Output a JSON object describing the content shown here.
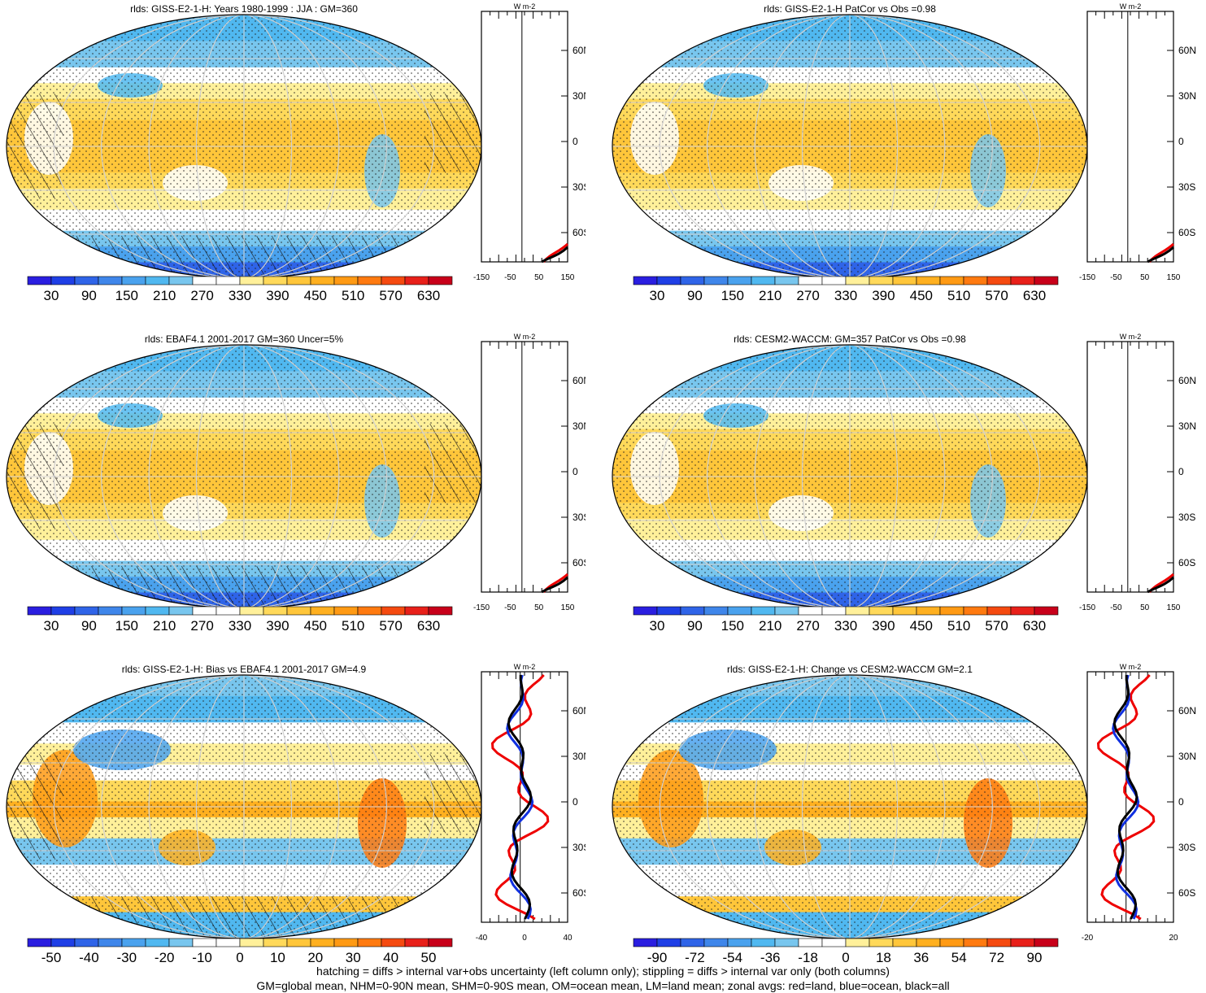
{
  "panels": [
    {
      "id": "p1",
      "title": "rlds: GISS-E2-1-H: Years 1980-1999 : JJA : GM=360",
      "type": "abs",
      "colorbar": [
        "30",
        "90",
        "150",
        "210",
        "270",
        "330",
        "390",
        "450",
        "510",
        "570",
        "630"
      ],
      "zonal_ticks": [
        "-150",
        "-50",
        "50",
        "150"
      ],
      "zonal_units": "W m-2",
      "hatch": true
    },
    {
      "id": "p2",
      "title": "rlds: GISS-E2-1-H PatCor vs Obs =0.98",
      "type": "abs",
      "colorbar": [
        "30",
        "90",
        "150",
        "210",
        "270",
        "330",
        "390",
        "450",
        "510",
        "570",
        "630"
      ],
      "zonal_ticks": [
        "-150",
        "-50",
        "50",
        "150"
      ],
      "zonal_units": "W m-2",
      "hatch": false
    },
    {
      "id": "p3",
      "title": "rlds: EBAF4.1 2001-2017 GM=360 Uncer=5%",
      "type": "abs",
      "colorbar": [
        "30",
        "90",
        "150",
        "210",
        "270",
        "330",
        "390",
        "450",
        "510",
        "570",
        "630"
      ],
      "zonal_ticks": [
        "-150",
        "-50",
        "50",
        "150"
      ],
      "zonal_units": "W m-2",
      "hatch": true
    },
    {
      "id": "p4",
      "title": "rlds: CESM2-WACCM: GM=357 PatCor vs Obs =0.98",
      "type": "abs",
      "colorbar": [
        "30",
        "90",
        "150",
        "210",
        "270",
        "330",
        "390",
        "450",
        "510",
        "570",
        "630"
      ],
      "zonal_ticks": [
        "-150",
        "-50",
        "50",
        "150"
      ],
      "zonal_units": "W m-2",
      "hatch": false
    },
    {
      "id": "p5",
      "title": "rlds: GISS-E2-1-H: Bias vs EBAF4.1 2001-2017 GM=4.9",
      "type": "diff",
      "colorbar": [
        "-50",
        "-40",
        "-30",
        "-20",
        "-10",
        "0",
        "10",
        "20",
        "30",
        "40",
        "50"
      ],
      "zonal_ticks": [
        "-40",
        "0",
        "40"
      ],
      "zonal_units": "W m-2",
      "hatch": true
    },
    {
      "id": "p6",
      "title": "rlds: GISS-E2-1-H: Change vs CESM2-WACCM GM=2.1",
      "type": "diff",
      "colorbar": [
        "-90",
        "-72",
        "-54",
        "-36",
        "-18",
        "0",
        "18",
        "36",
        "54",
        "72",
        "90"
      ],
      "zonal_ticks": [
        "-20",
        "20"
      ],
      "zonal_units": "W m-2",
      "hatch": false
    }
  ],
  "lat_labels": [
    "60N",
    "30N",
    "0",
    "30S",
    "60S"
  ],
  "palettes": {
    "abs": [
      "#2a1ee0",
      "#1f3fe6",
      "#2f64e8",
      "#3f86ea",
      "#4aa2ee",
      "#50b8f0",
      "#78c6ee",
      "#ffffff",
      "#ffffff",
      "#fff09a",
      "#ffd95a",
      "#ffc63a",
      "#ffb020",
      "#ff9a14",
      "#ff7a10",
      "#f54a10",
      "#e8201a",
      "#c8001a"
    ],
    "diff": [
      "#2a1ee0",
      "#1f3fe6",
      "#2f64e8",
      "#3f86ea",
      "#4aa2ee",
      "#50b8f0",
      "#78c6ee",
      "#ffffff",
      "#ffffff",
      "#fff09a",
      "#ffd95a",
      "#ffc63a",
      "#ffb020",
      "#ff9a14",
      "#ff7a10",
      "#f54a10",
      "#e8201a",
      "#c8001a"
    ]
  },
  "footnote": {
    "line1": "hatching = diffs > internal var+obs uncertainty (left column only); stippling = diffs > internal var only (both columns)",
    "line2": "GM=global mean, NHM=0-90N mean, SHM=0-90S mean, OM=ocean mean, LM=land mean; zonal avgs: red=land, blue=ocean, black=all"
  }
}
